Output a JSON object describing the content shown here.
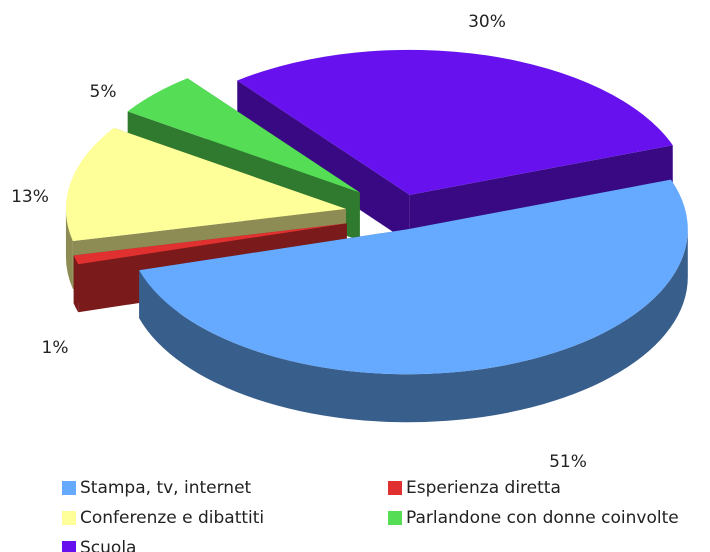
{
  "chart_data": {
    "type": "pie",
    "categories": [
      "Stampa, tv, internet",
      "Esperienza diretta",
      "Conferenze e dibattiti",
      "Parlandone con donne coinvolte",
      "Scuola"
    ],
    "values": [
      51,
      1,
      13,
      5,
      30
    ],
    "value_labels": [
      "51%",
      "1%",
      "13%",
      "5%",
      "30%"
    ],
    "colors": [
      "#66aaff",
      "#e03030",
      "#ffff99",
      "#55dd55",
      "#6611ee"
    ]
  }
}
